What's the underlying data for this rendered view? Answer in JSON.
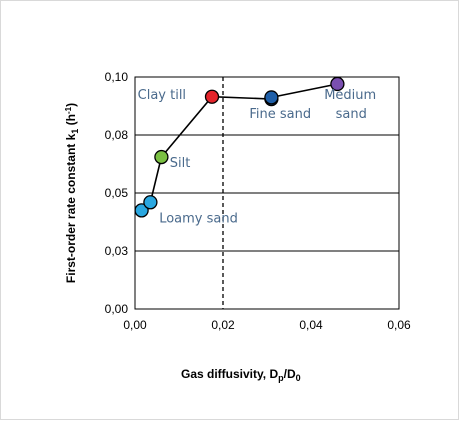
{
  "chart_data": {
    "type": "scatter",
    "xlabel": "Gas diffusivity, D",
    "xlabel_sub1": "p",
    "xlabel_mid": "/D",
    "xlabel_sub2": "0",
    "ylabel": "First-order rate constant k",
    "ylabel_sub": "1",
    "ylabel_unit_open": " (h",
    "ylabel_unit_sup": "-1",
    "ylabel_unit_close": ")",
    "xlim": [
      0,
      0.06
    ],
    "ylim": [
      0,
      0.1
    ],
    "x_ticks": [
      "0,00",
      "0,02",
      "0,04",
      "0,06"
    ],
    "x_tick_values": [
      0,
      0.02,
      0.04,
      0.06
    ],
    "y_ticks": [
      "0,00",
      "0,03",
      "0,05",
      "0,08",
      "0,10"
    ],
    "y_tick_values": [
      0,
      0.025,
      0.05,
      0.075,
      0.1
    ],
    "grid": "horizontal",
    "reference_line_x": 0.02,
    "points": [
      {
        "x": 0.0015,
        "y": 0.0425,
        "color": "#2aa7e0"
      },
      {
        "x": 0.0035,
        "y": 0.046,
        "color": "#2aa7e0"
      },
      {
        "x": 0.006,
        "y": 0.0655,
        "color": "#7bc043"
      },
      {
        "x": 0.0175,
        "y": 0.0915,
        "color": "#e3242b"
      },
      {
        "x": 0.031,
        "y": 0.0905,
        "color": "#1f5fa8"
      },
      {
        "x": 0.031,
        "y": 0.0912,
        "color": "#1f5fa8"
      },
      {
        "x": 0.046,
        "y": 0.097,
        "color": "#7a4fb0"
      }
    ],
    "labels": [
      {
        "text": "Clay till",
        "x": 0.0006,
        "y": 0.0905
      },
      {
        "text": "Fine sand",
        "x": 0.026,
        "y": 0.0823
      },
      {
        "text": "Medium",
        "x": 0.043,
        "y": 0.0905
      },
      {
        "text": "sand",
        "x": 0.0456,
        "y": 0.0823
      },
      {
        "text": "Silt",
        "x": 0.0079,
        "y": 0.0613
      },
      {
        "text": "Loamy sand",
        "x": 0.0055,
        "y": 0.0372
      }
    ]
  }
}
